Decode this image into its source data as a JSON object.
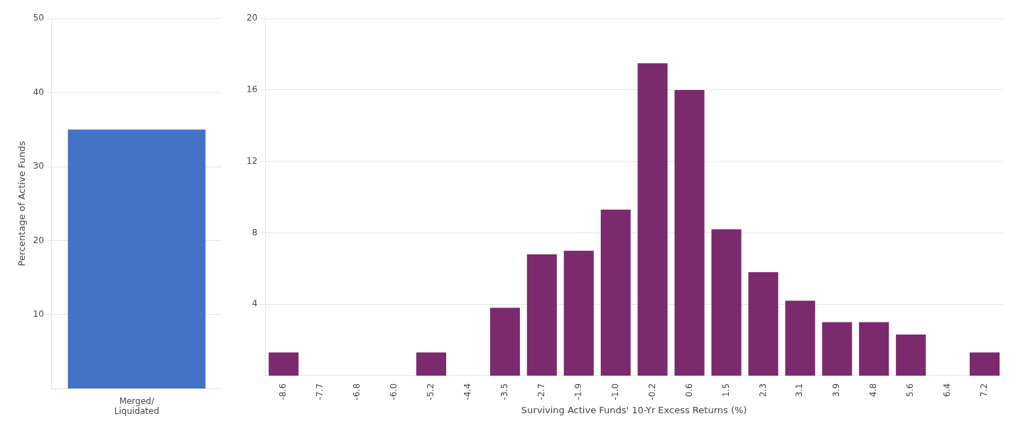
{
  "chart_data": [
    {
      "type": "bar",
      "categories": [
        "Merged/\nLiquidated"
      ],
      "values": [
        35
      ],
      "color": "#4472c4",
      "y_label": "Percentage of Active Funds",
      "ylim": [
        0,
        50
      ],
      "yticks": [
        10,
        20,
        30,
        40,
        50
      ],
      "grid": true
    },
    {
      "type": "bar",
      "categories": [
        "-8.6",
        "-7.7",
        "-6.8",
        "-6.0",
        "-5.2",
        "-4.4",
        "-3.5",
        "-2.7",
        "-1.9",
        "-1.0",
        "-0.2",
        "0.6",
        "1.5",
        "2.3",
        "3.1",
        "3.9",
        "4.8",
        "5.6",
        "6.4",
        "7.2"
      ],
      "values": [
        1.3,
        0.0,
        0.0,
        0.0,
        1.3,
        0.0,
        3.8,
        6.8,
        7.0,
        9.3,
        17.5,
        16.0,
        8.2,
        5.8,
        4.2,
        3.0,
        3.0,
        2.3,
        0.0,
        1.3
      ],
      "color": "#7b2a6d",
      "x_label": "Surviving Active Funds' 10-Yr Excess Returns (%)",
      "ylim": [
        0,
        20
      ],
      "yticks": [
        4,
        8,
        12,
        16,
        20
      ],
      "grid": true
    }
  ]
}
